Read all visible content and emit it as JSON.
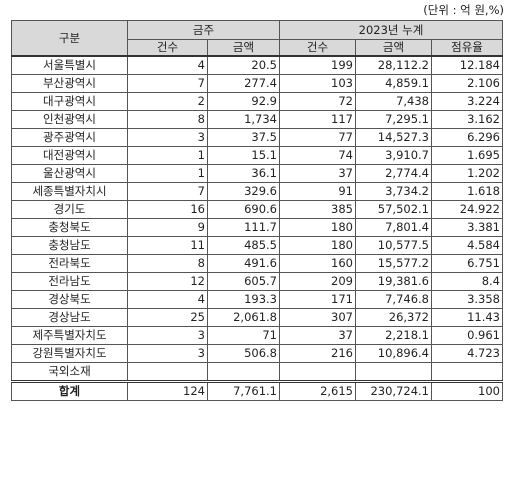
{
  "unit_note": "(단위 : 억 원,%)",
  "header": {
    "region": "구분",
    "this_week": "금주",
    "cumulative_2023": "2023년 누계",
    "count": "건수",
    "amount": "금액",
    "share": "점유율"
  },
  "rows": [
    {
      "region": "서울특별시",
      "week_count": "4",
      "week_amount": "20.5",
      "cum_count": "199",
      "cum_amount": "28,112.2",
      "share": "12.184"
    },
    {
      "region": "부산광역시",
      "week_count": "7",
      "week_amount": "277.4",
      "cum_count": "103",
      "cum_amount": "4,859.1",
      "share": "2.106"
    },
    {
      "region": "대구광역시",
      "week_count": "2",
      "week_amount": "92.9",
      "cum_count": "72",
      "cum_amount": "7,438",
      "share": "3.224"
    },
    {
      "region": "인천광역시",
      "week_count": "8",
      "week_amount": "1,734",
      "cum_count": "117",
      "cum_amount": "7,295.1",
      "share": "3.162"
    },
    {
      "region": "광주광역시",
      "week_count": "3",
      "week_amount": "37.5",
      "cum_count": "77",
      "cum_amount": "14,527.3",
      "share": "6.296"
    },
    {
      "region": "대전광역시",
      "week_count": "1",
      "week_amount": "15.1",
      "cum_count": "74",
      "cum_amount": "3,910.7",
      "share": "1.695"
    },
    {
      "region": "울산광역시",
      "week_count": "1",
      "week_amount": "36.1",
      "cum_count": "37",
      "cum_amount": "2,774.4",
      "share": "1.202"
    },
    {
      "region": "세종특별자치시",
      "week_count": "7",
      "week_amount": "329.6",
      "cum_count": "91",
      "cum_amount": "3,734.2",
      "share": "1.618"
    },
    {
      "region": "경기도",
      "week_count": "16",
      "week_amount": "690.6",
      "cum_count": "385",
      "cum_amount": "57,502.1",
      "share": "24.922"
    },
    {
      "region": "충청북도",
      "week_count": "9",
      "week_amount": "111.7",
      "cum_count": "180",
      "cum_amount": "7,801.4",
      "share": "3.381"
    },
    {
      "region": "충청남도",
      "week_count": "11",
      "week_amount": "485.5",
      "cum_count": "180",
      "cum_amount": "10,577.5",
      "share": "4.584"
    },
    {
      "region": "전라북도",
      "week_count": "8",
      "week_amount": "491.6",
      "cum_count": "160",
      "cum_amount": "15,577.2",
      "share": "6.751"
    },
    {
      "region": "전라남도",
      "week_count": "12",
      "week_amount": "605.7",
      "cum_count": "209",
      "cum_amount": "19,381.6",
      "share": "8.4"
    },
    {
      "region": "경상북도",
      "week_count": "4",
      "week_amount": "193.3",
      "cum_count": "171",
      "cum_amount": "7,746.8",
      "share": "3.358"
    },
    {
      "region": "경상남도",
      "week_count": "25",
      "week_amount": "2,061.8",
      "cum_count": "307",
      "cum_amount": "26,372",
      "share": "11.43"
    },
    {
      "region": "제주특별자치도",
      "week_count": "3",
      "week_amount": "71",
      "cum_count": "37",
      "cum_amount": "2,218.1",
      "share": "0.961"
    },
    {
      "region": "강원특별자치도",
      "week_count": "3",
      "week_amount": "506.8",
      "cum_count": "216",
      "cum_amount": "10,896.4",
      "share": "4.723"
    },
    {
      "region": "국외소재",
      "week_count": "",
      "week_amount": "",
      "cum_count": "",
      "cum_amount": "",
      "share": ""
    }
  ],
  "total": {
    "region": "합계",
    "week_count": "124",
    "week_amount": "7,761.1",
    "cum_count": "2,615",
    "cum_amount": "230,724.1",
    "share": "100"
  }
}
